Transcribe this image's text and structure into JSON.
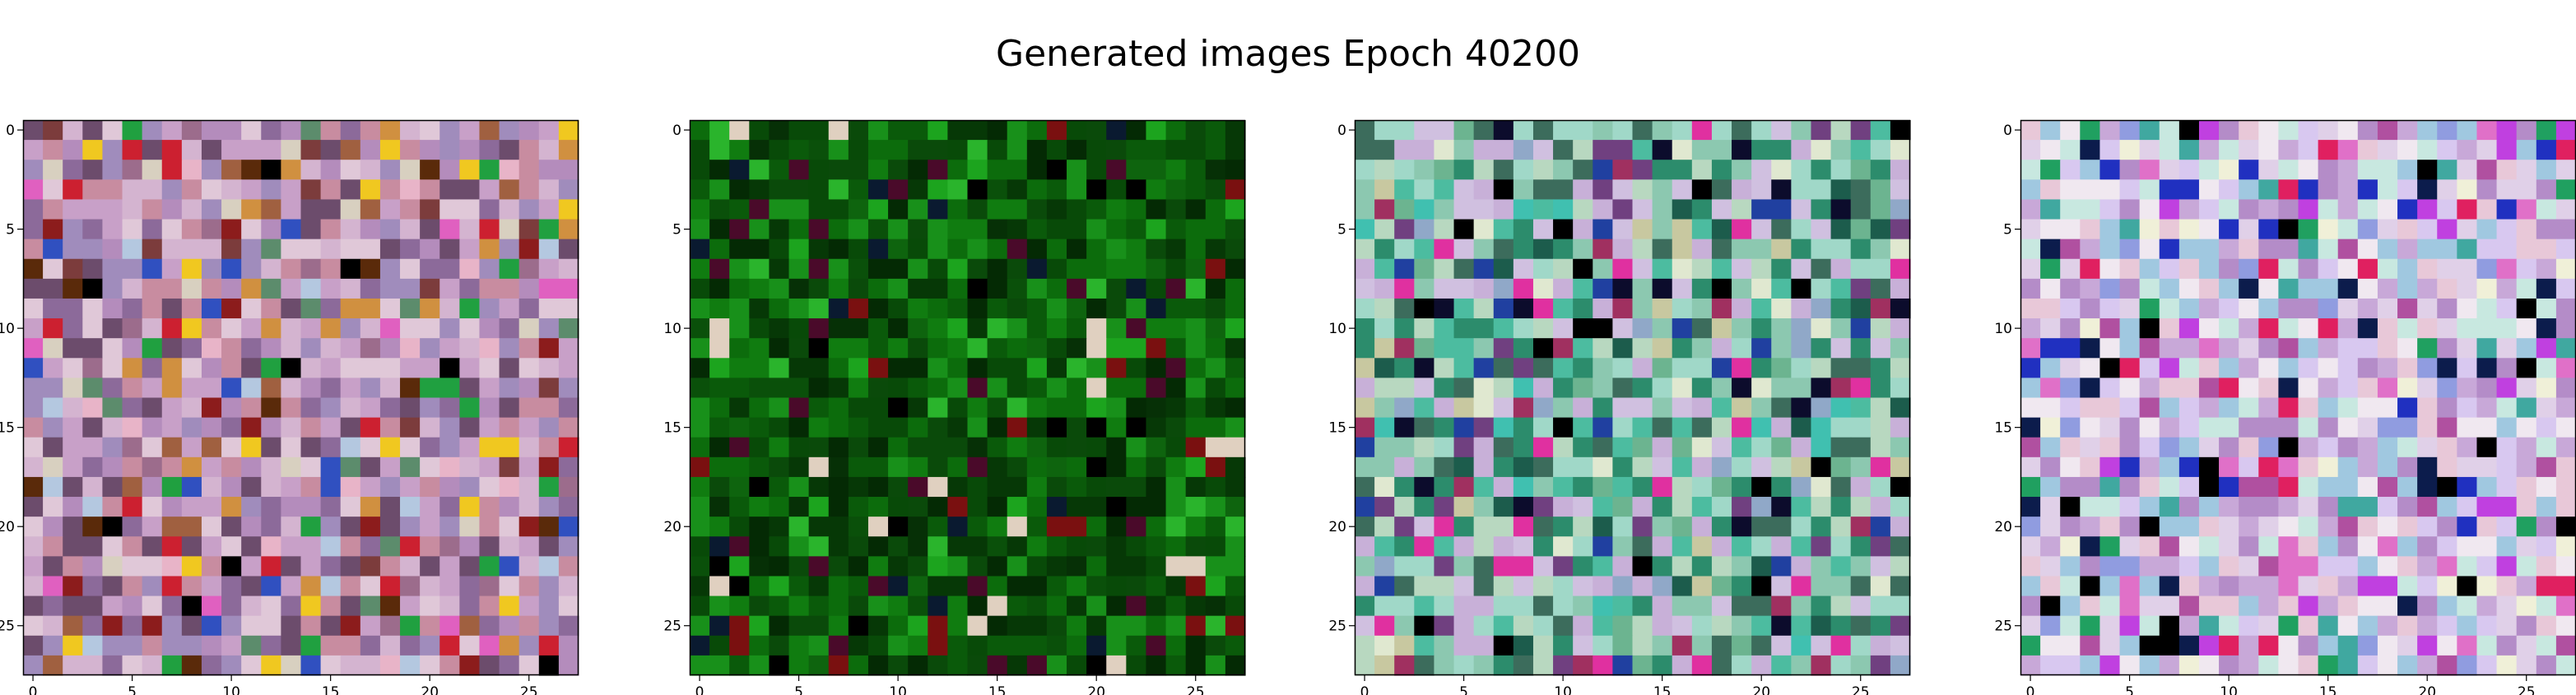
{
  "figure": {
    "title": "Generated images Epoch 40200"
  },
  "chart_data": [
    {
      "type": "heatmap",
      "title": "",
      "xlabel": "",
      "ylabel": "",
      "xlim": [
        -0.5,
        27.5
      ],
      "ylim": [
        27.5,
        -0.5
      ],
      "xticks": [
        0,
        5,
        10,
        15,
        20,
        25
      ],
      "yticks": [
        0,
        5,
        10,
        15,
        20,
        25
      ],
      "grid": false,
      "legend": "none",
      "palette": [
        "#c8a0c8",
        "#d4b4d0",
        "#8c6a9a",
        "#e0c8d8",
        "#b48cbc",
        "#6c4c6c",
        "#a08cbc",
        "#c88ca0",
        "#7c3c3c",
        "#d8d0c0",
        "#e8b4c8",
        "#9c6c8c",
        "#5c8c6c",
        "#b4c8e0",
        "#a06040",
        "#cc2030",
        "#f0c820",
        "#3050c0",
        "#20a040",
        "#e060c0",
        "#000000",
        "#5a2a0a",
        "#8c1c1c",
        "#d09040"
      ],
      "dominant_colors": "mauve/pink/lilac noise with red, brown and dark accents toward the bottom"
    },
    {
      "type": "heatmap",
      "title": "",
      "xlabel": "",
      "ylabel": "",
      "xlim": [
        -0.5,
        27.5
      ],
      "ylim": [
        27.5,
        -0.5
      ],
      "xticks": [
        0,
        5,
        10,
        15,
        20,
        25
      ],
      "yticks": [
        0,
        5,
        10,
        15,
        20,
        25
      ],
      "grid": false,
      "legend": "none",
      "palette": [
        "#0a5a0a",
        "#0c6c0c",
        "#084a08",
        "#107c10",
        "#063806",
        "#0a4a0a",
        "#18901a",
        "#042a04",
        "#0e640e",
        "#1ca41e",
        "#063006",
        "#0a500a",
        "#2ab42c",
        "#000000",
        "#0a1a30",
        "#7a1010",
        "#e0d0c0",
        "#4a0a2a"
      ],
      "dominant_colors": "dark green noise with a few black, maroon and light pixels"
    },
    {
      "type": "heatmap",
      "title": "",
      "xlabel": "",
      "ylabel": "",
      "xlim": [
        -0.5,
        27.5
      ],
      "ylim": [
        27.5,
        -0.5
      ],
      "xticks": [
        0,
        5,
        10,
        15,
        20,
        25
      ],
      "yticks": [
        0,
        5,
        10,
        15,
        20,
        25
      ],
      "grid": false,
      "legend": "none",
      "palette": [
        "#2c8c6c",
        "#4cbca0",
        "#a0d8c8",
        "#c8b0d8",
        "#8cc8b0",
        "#3c6c5c",
        "#b8d8c0",
        "#d0c0e0",
        "#6cb490",
        "#1c5c4c",
        "#e0e8d0",
        "#90a8c8",
        "#a03060",
        "#e030a0",
        "#0c0c2c",
        "#000000",
        "#c8c8a0",
        "#2040a0",
        "#40c0b0",
        "#704080"
      ],
      "dominant_colors": "teal/mint and lavender noise with magenta, navy and black accents"
    },
    {
      "type": "heatmap",
      "title": "",
      "xlabel": "",
      "ylabel": "",
      "xlim": [
        -0.5,
        27.5
      ],
      "ylim": [
        27.5,
        -0.5
      ],
      "xticks": [
        0,
        5,
        10,
        15,
        20,
        25
      ],
      "yticks": [
        0,
        5,
        10,
        15,
        20,
        25
      ],
      "grid": false,
      "legend": "none",
      "palette": [
        "#e0d0e8",
        "#c8a8d8",
        "#f0e8f0",
        "#b48cc8",
        "#d8c8f0",
        "#e8c8d8",
        "#a0c8e0",
        "#c8e8e0",
        "#f0f0d8",
        "#e070c8",
        "#b050a0",
        "#40a8a0",
        "#0c1c4c",
        "#000000",
        "#2030c0",
        "#e02060",
        "#20a060",
        "#c040e0",
        "#909ce0"
      ],
      "dominant_colors": "light lavender/white noise with magenta, navy and black accents"
    }
  ]
}
